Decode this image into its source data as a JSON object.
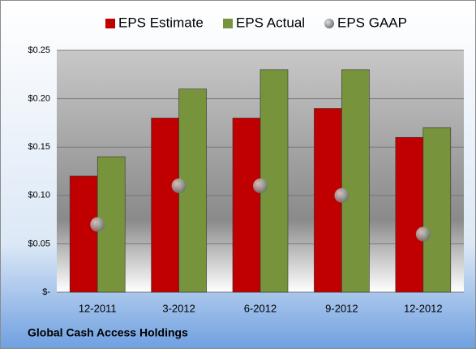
{
  "chart_data": {
    "type": "bar",
    "categories": [
      "12-2011",
      "3-2012",
      "6-2012",
      "9-2012",
      "12-2012"
    ],
    "series": [
      {
        "name": "EPS Estimate",
        "color": "#c00000",
        "values": [
          0.12,
          0.18,
          0.18,
          0.19,
          0.16
        ]
      },
      {
        "name": "EPS Actual",
        "color": "#77933c",
        "values": [
          0.14,
          0.21,
          0.23,
          0.23,
          0.17
        ]
      },
      {
        "name": "EPS GAAP",
        "type": "scatter",
        "color": "#8c8c8c",
        "values": [
          0.07,
          0.11,
          0.11,
          0.1,
          0.06
        ]
      }
    ],
    "ylim": [
      0,
      0.25
    ],
    "yticks": [
      {
        "value": 0,
        "label": "$-"
      },
      {
        "value": 0.05,
        "label": "$0.05"
      },
      {
        "value": 0.1,
        "label": "$0.10"
      },
      {
        "value": 0.15,
        "label": "$0.15"
      },
      {
        "value": 0.2,
        "label": "$0.20"
      },
      {
        "value": 0.25,
        "label": "$0.25"
      }
    ],
    "grid": true,
    "legend": "top",
    "annotation": "Global Cash Access Holdings"
  }
}
